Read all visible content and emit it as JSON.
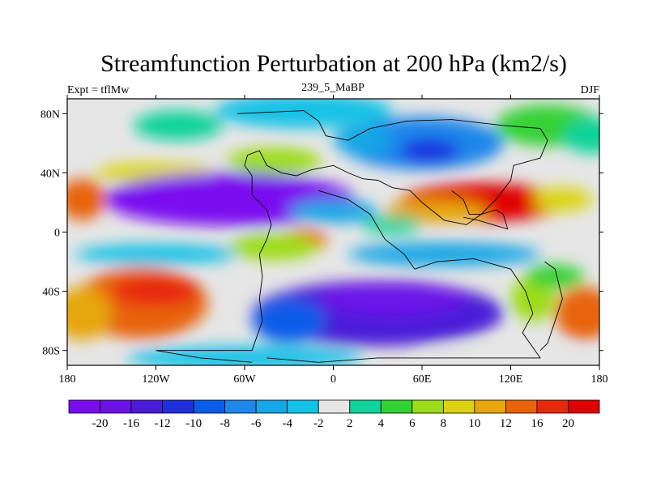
{
  "chart_data": {
    "type": "heatmap",
    "title": "Streamfunction Perturbation at 200 hPa (km2/s)",
    "left_label": "Expt = tflMw",
    "center_label": "239_5_MaBP",
    "right_label": "DJF",
    "x_range": [
      -180,
      180
    ],
    "y_range": [
      -90,
      90
    ],
    "x_ticks": [
      {
        "value": -180,
        "label": "180"
      },
      {
        "value": -120,
        "label": "120W"
      },
      {
        "value": -60,
        "label": "60W"
      },
      {
        "value": 0,
        "label": "0"
      },
      {
        "value": 60,
        "label": "60E"
      },
      {
        "value": 120,
        "label": "120E"
      },
      {
        "value": 180,
        "label": "180"
      }
    ],
    "y_ticks": [
      {
        "value": 80,
        "label": "80N"
      },
      {
        "value": 40,
        "label": "40N"
      },
      {
        "value": 0,
        "label": "0"
      },
      {
        "value": -40,
        "label": "40S"
      },
      {
        "value": -80,
        "label": "80S"
      }
    ],
    "levels": [
      -20,
      -16,
      -12,
      -10,
      -8,
      -6,
      -4,
      -2,
      2,
      4,
      6,
      8,
      10,
      12,
      16,
      20
    ],
    "colors": [
      "#7a0df0",
      "#6a12e8",
      "#4a1bd8",
      "#1f2fe0",
      "#0b5ce8",
      "#1f86ea",
      "#17a6e6",
      "#13c2e6",
      "#e6e6e6",
      "#0ed39a",
      "#34d134",
      "#9ddc18",
      "#dbd40c",
      "#e6a60c",
      "#e8640a",
      "#e8280c",
      "#e00000"
    ],
    "features": [
      {
        "lon": -120,
        "lat": 40,
        "rlon": 40,
        "rlat": 7,
        "value": 8
      },
      {
        "lon": -40,
        "lat": 48,
        "rlon": 32,
        "rlat": 9,
        "value": 6
      },
      {
        "lon": -105,
        "lat": 72,
        "rlon": 30,
        "rlat": 10,
        "value": 3
      },
      {
        "lon": -20,
        "lat": 82,
        "rlon": 60,
        "rlat": 12,
        "value": -4
      },
      {
        "lon": 60,
        "lat": 60,
        "rlon": 55,
        "rlat": 18,
        "value": -7
      },
      {
        "lon": 65,
        "lat": 55,
        "rlon": 20,
        "rlat": 8,
        "value": -11
      },
      {
        "lon": 20,
        "lat": 62,
        "rlon": 20,
        "rlat": 10,
        "value": -5
      },
      {
        "lon": 145,
        "lat": 72,
        "rlon": 35,
        "rlat": 14,
        "value": 5
      },
      {
        "lon": 175,
        "lat": 65,
        "rlon": 20,
        "rlat": 12,
        "value": 3
      },
      {
        "lon": -70,
        "lat": 22,
        "rlon": 85,
        "rlat": 18,
        "value": -21
      },
      {
        "lon": 0,
        "lat": 14,
        "rlon": 30,
        "rlat": 8,
        "value": -6
      },
      {
        "lon": -170,
        "lat": 22,
        "rlon": 16,
        "rlat": 14,
        "value": 14
      },
      {
        "lon": 100,
        "lat": 20,
        "rlon": 55,
        "rlat": 13,
        "value": 21
      },
      {
        "lon": 70,
        "lat": 14,
        "rlon": 35,
        "rlat": 8,
        "value": 10
      },
      {
        "lon": 155,
        "lat": 22,
        "rlon": 20,
        "rlat": 8,
        "value": 8
      },
      {
        "lon": -20,
        "lat": -5,
        "rlon": 16,
        "rlat": 7,
        "value": 14
      },
      {
        "lon": -40,
        "lat": -10,
        "rlon": 30,
        "rlat": 9,
        "value": 6
      },
      {
        "lon": -120,
        "lat": -15,
        "rlon": 55,
        "rlat": 7,
        "value": -4
      },
      {
        "lon": 75,
        "lat": -15,
        "rlon": 65,
        "rlat": 8,
        "value": -5
      },
      {
        "lon": 40,
        "lat": 5,
        "rlon": 20,
        "rlat": 6,
        "value": 2
      },
      {
        "lon": -130,
        "lat": -48,
        "rlon": 45,
        "rlat": 24,
        "value": 13
      },
      {
        "lon": -120,
        "lat": -40,
        "rlon": 30,
        "rlat": 10,
        "value": 17
      },
      {
        "lon": -170,
        "lat": -55,
        "rlon": 20,
        "rlat": 18,
        "value": 11
      },
      {
        "lon": 30,
        "lat": -55,
        "rlon": 85,
        "rlat": 22,
        "value": -15
      },
      {
        "lon": 40,
        "lat": -45,
        "rlon": 50,
        "rlat": 12,
        "value": -20
      },
      {
        "lon": -30,
        "lat": -60,
        "rlon": 25,
        "rlat": 15,
        "value": -10
      },
      {
        "lon": 170,
        "lat": -55,
        "rlon": 20,
        "rlat": 18,
        "value": 14
      },
      {
        "lon": 135,
        "lat": -45,
        "rlon": 15,
        "rlat": 15,
        "value": 6
      },
      {
        "lon": 150,
        "lat": -30,
        "rlon": 20,
        "rlat": 8,
        "value": 4
      },
      {
        "lon": -60,
        "lat": -85,
        "rlon": 80,
        "rlat": 8,
        "value": -3
      },
      {
        "lon": 120,
        "lat": -85,
        "rlon": 60,
        "rlat": 8,
        "value": -2
      }
    ],
    "outline": [
      [
        [
          -65,
          80
        ],
        [
          -20,
          82
        ],
        [
          -10,
          75
        ],
        [
          -5,
          65
        ],
        [
          10,
          62
        ],
        [
          25,
          70
        ],
        [
          50,
          75
        ],
        [
          80,
          76
        ],
        [
          115,
          72
        ],
        [
          140,
          70
        ],
        [
          145,
          62
        ],
        [
          140,
          50
        ],
        [
          122,
          45
        ],
        [
          120,
          35
        ],
        [
          110,
          22
        ],
        [
          100,
          12
        ],
        [
          90,
          5
        ],
        [
          75,
          8
        ],
        [
          60,
          20
        ],
        [
          52,
          28
        ],
        [
          40,
          30
        ],
        [
          30,
          35
        ],
        [
          20,
          36
        ],
        [
          10,
          40
        ],
        [
          0,
          45
        ],
        [
          -15,
          42
        ],
        [
          -25,
          38
        ],
        [
          -35,
          40
        ],
        [
          -45,
          45
        ],
        [
          -50,
          55
        ],
        [
          -58,
          52
        ],
        [
          -60,
          45
        ],
        [
          -55,
          38
        ],
        [
          -55,
          25
        ],
        [
          -45,
          15
        ],
        [
          -42,
          5
        ],
        [
          -45,
          -5
        ],
        [
          -50,
          -15
        ],
        [
          -48,
          -30
        ],
        [
          -50,
          -45
        ],
        [
          -48,
          -60
        ],
        [
          -55,
          -80
        ],
        [
          -120,
          -80
        ],
        [
          -90,
          -85
        ],
        [
          -55,
          -88
        ]
      ],
      [
        [
          -10,
          28
        ],
        [
          10,
          22
        ],
        [
          25,
          12
        ],
        [
          35,
          -5
        ],
        [
          48,
          -15
        ],
        [
          55,
          -25
        ],
        [
          70,
          -20
        ],
        [
          95,
          -18
        ],
        [
          120,
          -25
        ],
        [
          130,
          -40
        ],
        [
          135,
          -55
        ],
        [
          128,
          -68
        ],
        [
          140,
          -85
        ],
        [
          30,
          -85
        ],
        [
          -10,
          -88
        ],
        [
          -45,
          -85
        ]
      ],
      [
        [
          80,
          28
        ],
        [
          88,
          22
        ],
        [
          92,
          12
        ],
        [
          100,
          12
        ],
        [
          110,
          15
        ],
        [
          115,
          12
        ],
        [
          118,
          2
        ],
        [
          108,
          5
        ],
        [
          98,
          8
        ],
        [
          88,
          10
        ]
      ],
      [
        [
          143,
          -20
        ],
        [
          150,
          -25
        ],
        [
          155,
          -45
        ],
        [
          150,
          -60
        ],
        [
          145,
          -75
        ],
        [
          140,
          -80
        ]
      ]
    ]
  }
}
